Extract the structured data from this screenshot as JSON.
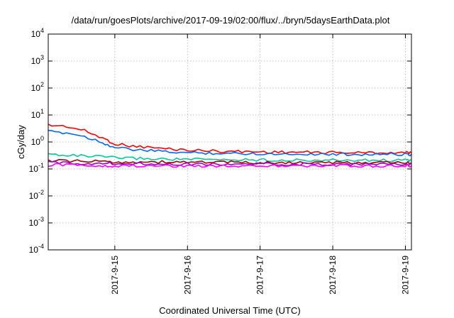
{
  "chart_data": {
    "type": "line",
    "title": "/data/run/goesPlots/archive/2017-09-19/02:00/flux/../bryn/5daysEarthData.plot",
    "xlabel": "Coordinated Universal Time (UTC)",
    "ylabel": "cGy/day",
    "yscale": "log",
    "ylim": [
      0.0001,
      10000
    ],
    "xlim": [
      "2017-09-14T02:00",
      "2017-09-19T02:00"
    ],
    "yticks": [
      {
        "base": "10",
        "exp": "-4",
        "value": 0.0001
      },
      {
        "base": "10",
        "exp": "-3",
        "value": 0.001
      },
      {
        "base": "10",
        "exp": "-2",
        "value": 0.01
      },
      {
        "base": "10",
        "exp": "-1",
        "value": 0.1
      },
      {
        "base": "10",
        "exp": "0",
        "value": 1
      },
      {
        "base": "10",
        "exp": "1",
        "value": 10
      },
      {
        "base": "10",
        "exp": "2",
        "value": 100
      },
      {
        "base": "10",
        "exp": "3",
        "value": 1000
      },
      {
        "base": "10",
        "exp": "4",
        "value": 10000
      }
    ],
    "xticks": [
      {
        "label": "2017-9-15",
        "date": "2017-09-15T00:00"
      },
      {
        "label": "2017-9-16",
        "date": "2017-09-16T00:00"
      },
      {
        "label": "2017-9-17",
        "date": "2017-09-17T00:00"
      },
      {
        "label": "2017-9-18",
        "date": "2017-09-18T00:00"
      },
      {
        "label": "2017-9-19",
        "date": "2017-09-19T00:00"
      }
    ],
    "grid": true,
    "x": [
      "2017-09-14T02:00",
      "2017-09-14T08:00",
      "2017-09-14T14:00",
      "2017-09-14T20:00",
      "2017-09-15T00:00",
      "2017-09-15T06:00",
      "2017-09-15T12:00",
      "2017-09-15T18:00",
      "2017-09-16T00:00",
      "2017-09-16T06:00",
      "2017-09-16T12:00",
      "2017-09-16T18:00",
      "2017-09-17T00:00",
      "2017-09-17T06:00",
      "2017-09-17T12:00",
      "2017-09-17T18:00",
      "2017-09-18T00:00",
      "2017-09-18T06:00",
      "2017-09-18T12:00",
      "2017-09-18T18:00",
      "2017-09-19T00:00",
      "2017-09-19T02:00"
    ],
    "series": [
      {
        "color": "#ff0000",
        "values": [
          4.2,
          3.8,
          2.6,
          1.4,
          0.85,
          0.7,
          0.62,
          0.55,
          0.5,
          0.48,
          0.45,
          0.44,
          0.43,
          0.42,
          0.42,
          0.41,
          0.41,
          0.4,
          0.4,
          0.4,
          0.4,
          0.4
        ]
      },
      {
        "color": "#0066ff",
        "values": [
          2.4,
          2.2,
          1.6,
          0.95,
          0.62,
          0.52,
          0.47,
          0.43,
          0.4,
          0.39,
          0.38,
          0.37,
          0.37,
          0.36,
          0.36,
          0.36,
          0.35,
          0.35,
          0.35,
          0.35,
          0.35,
          0.35
        ]
      },
      {
        "color": "#00c8a0",
        "values": [
          0.35,
          0.33,
          0.3,
          0.28,
          0.26,
          0.25,
          0.24,
          0.23,
          0.23,
          0.22,
          0.22,
          0.22,
          0.22,
          0.21,
          0.21,
          0.21,
          0.21,
          0.21,
          0.21,
          0.21,
          0.21,
          0.21
        ]
      },
      {
        "color": "#a00000",
        "values": [
          0.2,
          0.2,
          0.19,
          0.19,
          0.18,
          0.18,
          0.18,
          0.18,
          0.18,
          0.18,
          0.18,
          0.17,
          0.17,
          0.17,
          0.17,
          0.17,
          0.17,
          0.17,
          0.17,
          0.17,
          0.17,
          0.17
        ]
      },
      {
        "color": "#9900cc",
        "values": [
          0.17,
          0.17,
          0.16,
          0.16,
          0.16,
          0.16,
          0.16,
          0.15,
          0.15,
          0.15,
          0.15,
          0.15,
          0.15,
          0.15,
          0.15,
          0.15,
          0.15,
          0.15,
          0.15,
          0.15,
          0.15,
          0.15
        ]
      },
      {
        "color": "#ff00ff",
        "values": [
          0.14,
          0.14,
          0.14,
          0.13,
          0.13,
          0.13,
          0.13,
          0.13,
          0.13,
          0.13,
          0.13,
          0.13,
          0.13,
          0.13,
          0.13,
          0.13,
          0.13,
          0.13,
          0.13,
          0.13,
          0.13,
          0.13
        ]
      }
    ]
  }
}
